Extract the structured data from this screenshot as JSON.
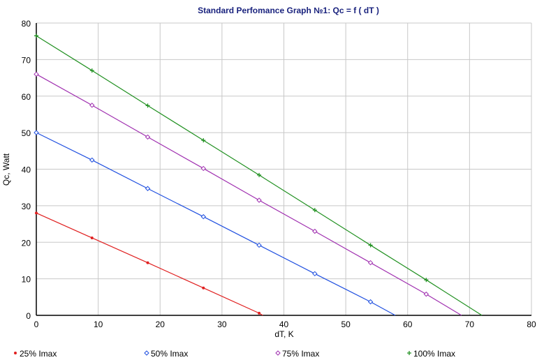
{
  "chart_data": {
    "type": "line",
    "title": "Standard Perfomance Graph №1: Qc = f ( dT )",
    "xlabel": "dT, K",
    "ylabel": "Qc, Watt",
    "xlim": [
      0,
      80
    ],
    "ylim": [
      0,
      80
    ],
    "xticks": [
      0,
      10,
      20,
      30,
      40,
      50,
      60,
      70,
      80
    ],
    "yticks": [
      0,
      10,
      20,
      30,
      40,
      50,
      60,
      70,
      80
    ],
    "grid": true,
    "legend": "bottom",
    "series": [
      {
        "name": "25% Imax",
        "color": "#e02020",
        "marker": "dot",
        "x": [
          0,
          9,
          18,
          27,
          36,
          36.6
        ],
        "y": [
          28,
          21.2,
          14.4,
          7.5,
          0.6,
          0
        ],
        "marker_x": [
          0,
          9,
          18,
          27,
          36
        ]
      },
      {
        "name": "50% Imax",
        "color": "#2050e0",
        "marker": "diamond",
        "x": [
          0,
          9,
          18,
          27,
          36,
          45,
          54,
          58
        ],
        "y": [
          50,
          42.5,
          34.7,
          27,
          19.2,
          11.4,
          3.7,
          0
        ],
        "marker_x": [
          0,
          9,
          18,
          27,
          36,
          45,
          54
        ]
      },
      {
        "name": "75% Imax",
        "color": "#a030b0",
        "marker": "diamond",
        "x": [
          0,
          9,
          18,
          27,
          36,
          45,
          54,
          63,
          68.7
        ],
        "y": [
          66,
          57.5,
          48.8,
          40.2,
          31.5,
          23,
          14.4,
          5.8,
          0
        ],
        "marker_x": [
          0,
          9,
          18,
          27,
          36,
          45,
          54,
          63
        ]
      },
      {
        "name": "100% Imax",
        "color": "#209020",
        "marker": "plus",
        "x": [
          0,
          9,
          18,
          27,
          36,
          45,
          54,
          63,
          72
        ],
        "y": [
          76.5,
          67,
          57.4,
          47.9,
          38.4,
          28.8,
          19.2,
          9.7,
          0
        ],
        "marker_x": [
          0,
          9,
          18,
          27,
          36,
          45,
          54,
          63
        ]
      }
    ]
  }
}
